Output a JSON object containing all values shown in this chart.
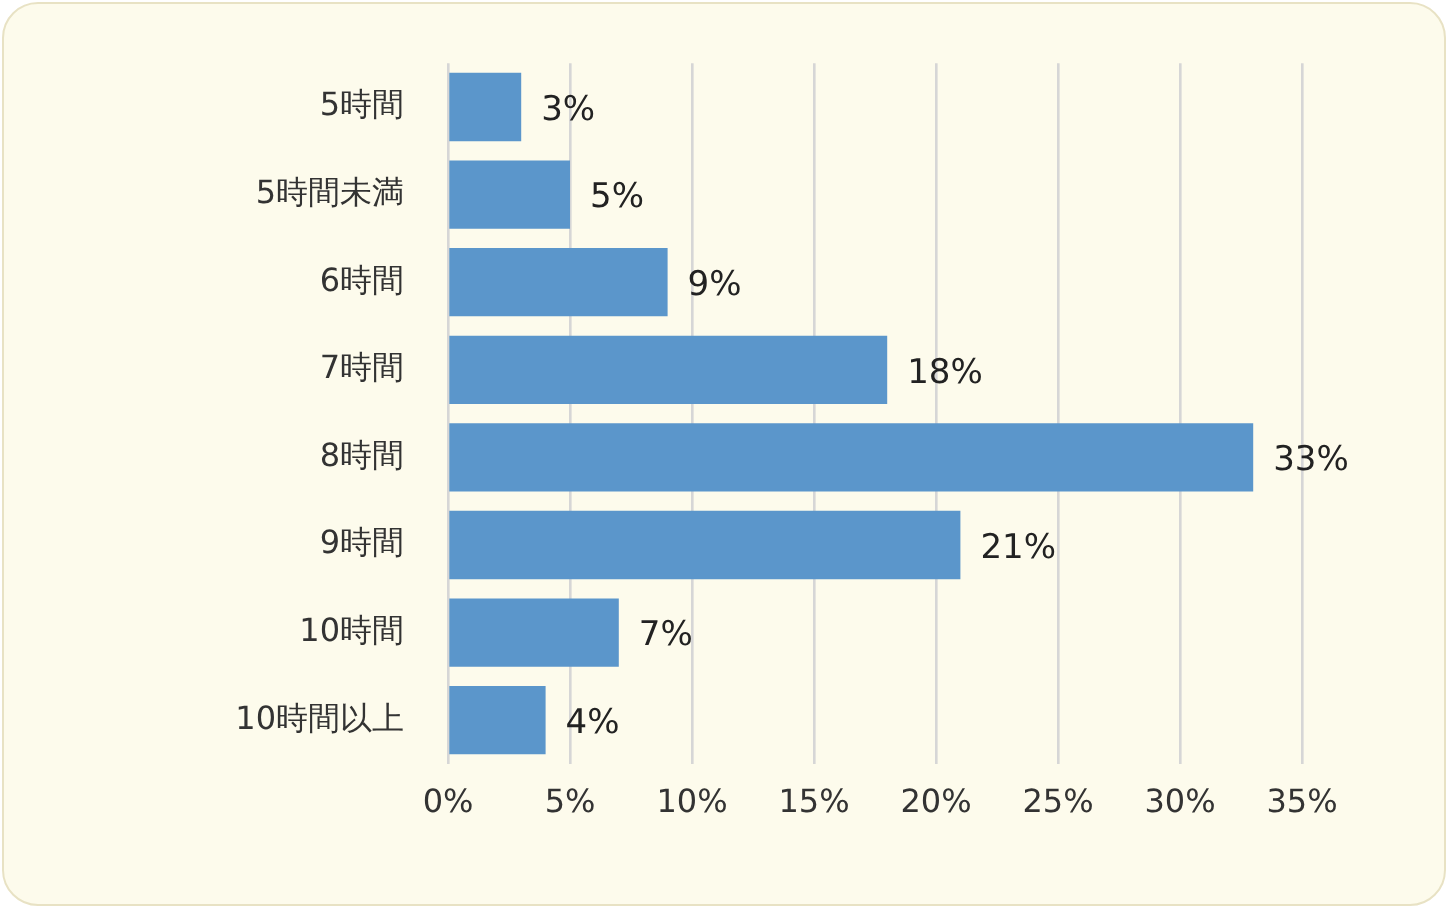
{
  "chart_data": {
    "type": "bar",
    "orientation": "horizontal",
    "categories": [
      "5時間",
      "5時間未満",
      "6時間",
      "7時間",
      "8時間",
      "9時間",
      "10時間",
      "10時間以上"
    ],
    "values": [
      3,
      5,
      9,
      18,
      33,
      21,
      7,
      4
    ],
    "color": "#5b96cb",
    "value_labels": [
      "3%",
      "5%",
      "9%",
      "18%",
      "33%",
      "21%",
      "7%",
      "4%"
    ],
    "xlim": [
      0,
      35
    ],
    "xticks": [
      {
        "value": 0,
        "label": "0%"
      },
      {
        "value": 5,
        "label": "5%"
      },
      {
        "value": 10,
        "label": "10%"
      },
      {
        "value": 15,
        "label": "15%"
      },
      {
        "value": 20,
        "label": "20%"
      },
      {
        "value": 25,
        "label": "25%"
      },
      {
        "value": 30,
        "label": "30%"
      },
      {
        "value": 35,
        "label": "35%"
      }
    ],
    "grid": "x"
  }
}
